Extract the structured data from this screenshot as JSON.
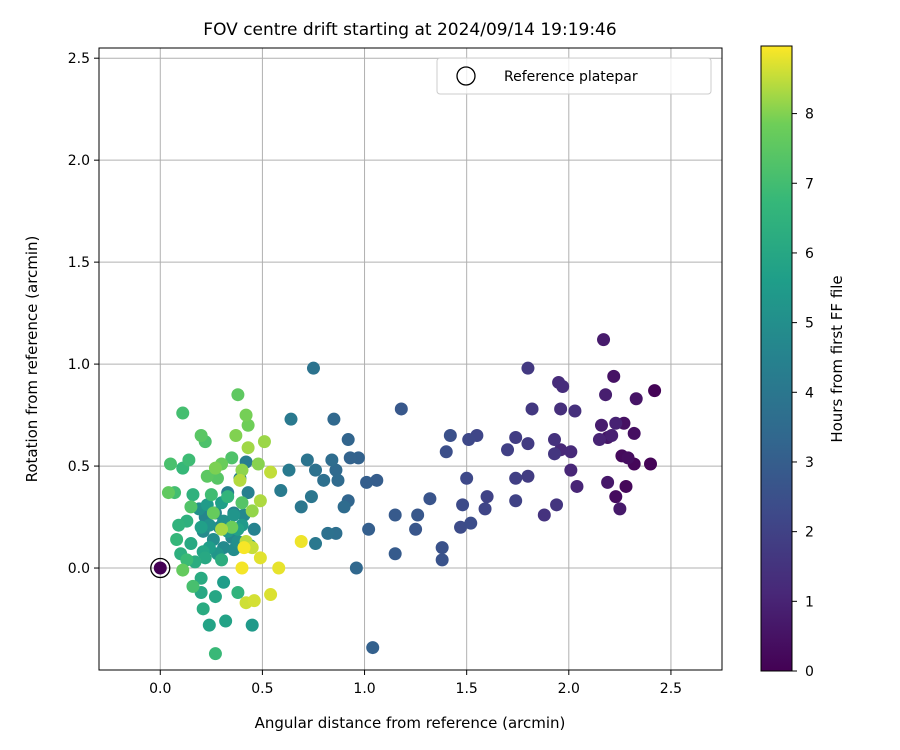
{
  "chart_data": {
    "type": "scatter",
    "title": "FOV centre drift starting at 2024/09/14 19:19:46",
    "xlabel": "Angular distance from reference (arcmin)",
    "ylabel": "Rotation from reference (arcmin)",
    "xlim": [
      -0.3,
      2.75
    ],
    "ylim": [
      -0.5,
      2.55
    ],
    "xticks": [
      0.0,
      0.5,
      1.0,
      1.5,
      2.0,
      2.5
    ],
    "xtick_labels": [
      "0.0",
      "0.5",
      "1.0",
      "1.5",
      "2.0",
      "2.5"
    ],
    "yticks": [
      0.0,
      0.5,
      1.0,
      1.5,
      2.0,
      2.5
    ],
    "ytick_labels": [
      "0.0",
      "0.5",
      "1.0",
      "1.5",
      "2.0",
      "2.5"
    ],
    "grid": true,
    "legend": {
      "placement": "top-right",
      "entries": [
        "Reference platepar"
      ]
    },
    "colorbar": {
      "label": "Hours from first FF file",
      "range": [
        0,
        8.97
      ],
      "ticks": [
        0,
        1,
        2,
        3,
        4,
        5,
        6,
        7,
        8
      ],
      "tick_labels": [
        "0",
        "1",
        "2",
        "3",
        "4",
        "5",
        "6",
        "7",
        "8"
      ],
      "colormap": "viridis"
    },
    "reference_point": {
      "x": 0.0,
      "y": 0.0,
      "hours": 0.0
    },
    "series": [
      {
        "points": [
          {
            "x": 2.42,
            "y": 0.87,
            "h": 0.05
          },
          {
            "x": 2.4,
            "y": 0.51,
            "h": 0.1
          },
          {
            "x": 2.32,
            "y": 0.51,
            "h": 0.15
          },
          {
            "x": 2.28,
            "y": 0.4,
            "h": 0.2
          },
          {
            "x": 2.26,
            "y": 0.55,
            "h": 0.25
          },
          {
            "x": 2.23,
            "y": 0.35,
            "h": 0.3
          },
          {
            "x": 2.29,
            "y": 0.54,
            "h": 0.35
          },
          {
            "x": 2.32,
            "y": 0.66,
            "h": 0.4
          },
          {
            "x": 2.27,
            "y": 0.71,
            "h": 0.45
          },
          {
            "x": 2.22,
            "y": 0.94,
            "h": 0.5
          },
          {
            "x": 2.33,
            "y": 0.83,
            "h": 0.55
          },
          {
            "x": 2.19,
            "y": 0.64,
            "h": 0.6
          },
          {
            "x": 2.19,
            "y": 0.42,
            "h": 0.65
          },
          {
            "x": 2.25,
            "y": 0.29,
            "h": 0.7
          },
          {
            "x": 2.17,
            "y": 1.12,
            "h": 0.75
          },
          {
            "x": 2.16,
            "y": 0.7,
            "h": 0.8
          },
          {
            "x": 2.18,
            "y": 0.85,
            "h": 0.85
          },
          {
            "x": 2.21,
            "y": 0.65,
            "h": 0.9
          },
          {
            "x": 2.23,
            "y": 0.71,
            "h": 0.95
          },
          {
            "x": 2.15,
            "y": 0.63,
            "h": 1.0
          },
          {
            "x": 2.04,
            "y": 0.4,
            "h": 1.05
          },
          {
            "x": 2.01,
            "y": 0.48,
            "h": 1.1
          },
          {
            "x": 1.96,
            "y": 0.58,
            "h": 1.15
          },
          {
            "x": 2.01,
            "y": 0.57,
            "h": 1.2
          },
          {
            "x": 1.95,
            "y": 0.91,
            "h": 1.25
          },
          {
            "x": 1.97,
            "y": 0.89,
            "h": 1.3
          },
          {
            "x": 1.96,
            "y": 0.78,
            "h": 1.35
          },
          {
            "x": 2.03,
            "y": 0.77,
            "h": 1.4
          },
          {
            "x": 1.93,
            "y": 0.63,
            "h": 1.45
          },
          {
            "x": 1.88,
            "y": 0.26,
            "h": 1.5
          },
          {
            "x": 1.94,
            "y": 0.31,
            "h": 1.55
          },
          {
            "x": 1.93,
            "y": 0.56,
            "h": 1.6
          },
          {
            "x": 1.82,
            "y": 0.78,
            "h": 1.65
          },
          {
            "x": 1.8,
            "y": 0.98,
            "h": 1.7
          },
          {
            "x": 1.8,
            "y": 0.61,
            "h": 1.75
          },
          {
            "x": 1.8,
            "y": 0.45,
            "h": 1.8
          },
          {
            "x": 1.74,
            "y": 0.64,
            "h": 1.85
          },
          {
            "x": 1.74,
            "y": 0.44,
            "h": 1.9
          },
          {
            "x": 1.7,
            "y": 0.58,
            "h": 1.95
          },
          {
            "x": 1.74,
            "y": 0.33,
            "h": 2.0
          },
          {
            "x": 1.6,
            "y": 0.35,
            "h": 2.05
          },
          {
            "x": 1.59,
            "y": 0.29,
            "h": 2.1
          },
          {
            "x": 1.55,
            "y": 0.65,
            "h": 2.15
          },
          {
            "x": 1.51,
            "y": 0.63,
            "h": 2.2
          },
          {
            "x": 1.5,
            "y": 0.44,
            "h": 2.25
          },
          {
            "x": 1.48,
            "y": 0.31,
            "h": 2.3
          },
          {
            "x": 1.47,
            "y": 0.2,
            "h": 2.35
          },
          {
            "x": 1.52,
            "y": 0.22,
            "h": 2.4
          },
          {
            "x": 1.4,
            "y": 0.57,
            "h": 2.45
          },
          {
            "x": 1.42,
            "y": 0.65,
            "h": 2.5
          },
          {
            "x": 1.38,
            "y": 0.1,
            "h": 2.55
          },
          {
            "x": 1.38,
            "y": 0.04,
            "h": 2.6
          },
          {
            "x": 1.32,
            "y": 0.34,
            "h": 2.65
          },
          {
            "x": 1.25,
            "y": 0.19,
            "h": 2.7
          },
          {
            "x": 1.26,
            "y": 0.26,
            "h": 2.75
          },
          {
            "x": 1.18,
            "y": 0.78,
            "h": 2.8
          },
          {
            "x": 1.15,
            "y": 0.26,
            "h": 2.85
          },
          {
            "x": 1.15,
            "y": 0.07,
            "h": 2.9
          },
          {
            "x": 1.06,
            "y": 0.43,
            "h": 2.95
          },
          {
            "x": 1.01,
            "y": 0.42,
            "h": 3.0
          },
          {
            "x": 1.02,
            "y": 0.19,
            "h": 3.05
          },
          {
            "x": 1.04,
            "y": -0.39,
            "h": 3.1
          },
          {
            "x": 0.97,
            "y": 0.54,
            "h": 3.15
          },
          {
            "x": 0.93,
            "y": 0.54,
            "h": 3.2
          },
          {
            "x": 0.92,
            "y": 0.63,
            "h": 3.25
          },
          {
            "x": 0.92,
            "y": 0.33,
            "h": 3.3
          },
          {
            "x": 0.96,
            "y": 0.0,
            "h": 3.35
          },
          {
            "x": 0.85,
            "y": 0.73,
            "h": 3.4
          },
          {
            "x": 0.86,
            "y": 0.48,
            "h": 3.45
          },
          {
            "x": 0.87,
            "y": 0.43,
            "h": 3.5
          },
          {
            "x": 0.9,
            "y": 0.3,
            "h": 3.55
          },
          {
            "x": 0.84,
            "y": 0.53,
            "h": 3.6
          },
          {
            "x": 0.86,
            "y": 0.17,
            "h": 3.65
          },
          {
            "x": 0.8,
            "y": 0.43,
            "h": 3.7
          },
          {
            "x": 0.82,
            "y": 0.17,
            "h": 3.75
          },
          {
            "x": 0.76,
            "y": 0.48,
            "h": 3.8
          },
          {
            "x": 0.75,
            "y": 0.98,
            "h": 3.85
          },
          {
            "x": 0.72,
            "y": 0.53,
            "h": 3.9
          },
          {
            "x": 0.74,
            "y": 0.35,
            "h": 3.95
          },
          {
            "x": 0.69,
            "y": 0.3,
            "h": 4.0
          },
          {
            "x": 0.76,
            "y": 0.12,
            "h": 4.05
          },
          {
            "x": 0.64,
            "y": 0.73,
            "h": 4.1
          },
          {
            "x": 0.63,
            "y": 0.48,
            "h": 4.15
          },
          {
            "x": 0.59,
            "y": 0.38,
            "h": 4.2
          },
          {
            "x": 0.42,
            "y": 0.52,
            "h": 4.25
          },
          {
            "x": 0.39,
            "y": 0.44,
            "h": 4.3
          },
          {
            "x": 0.43,
            "y": 0.37,
            "h": 4.35
          },
          {
            "x": 0.33,
            "y": 0.37,
            "h": 4.4
          },
          {
            "x": 0.36,
            "y": 0.27,
            "h": 4.45
          },
          {
            "x": 0.46,
            "y": 0.19,
            "h": 4.5
          },
          {
            "x": 0.29,
            "y": 0.2,
            "h": 4.55
          },
          {
            "x": 0.27,
            "y": 0.27,
            "h": 4.6
          },
          {
            "x": 0.22,
            "y": 0.25,
            "h": 4.65
          },
          {
            "x": 0.35,
            "y": 0.15,
            "h": 4.7
          },
          {
            "x": 0.41,
            "y": 0.26,
            "h": 4.75
          },
          {
            "x": 0.31,
            "y": 0.1,
            "h": 4.8
          },
          {
            "x": 0.21,
            "y": 0.18,
            "h": 4.85
          },
          {
            "x": 0.36,
            "y": 0.09,
            "h": 4.9
          },
          {
            "x": 0.26,
            "y": 0.14,
            "h": 4.95
          },
          {
            "x": 0.38,
            "y": 0.13,
            "h": 5.0
          },
          {
            "x": 0.19,
            "y": 0.29,
            "h": 5.05
          },
          {
            "x": 0.31,
            "y": 0.23,
            "h": 5.1
          },
          {
            "x": 0.24,
            "y": 0.21,
            "h": 5.15
          },
          {
            "x": 0.44,
            "y": 0.11,
            "h": 5.2
          },
          {
            "x": 0.36,
            "y": 0.26,
            "h": 5.25
          },
          {
            "x": 0.28,
            "y": 0.07,
            "h": 5.3
          },
          {
            "x": 0.33,
            "y": 0.18,
            "h": 5.35
          },
          {
            "x": 0.4,
            "y": 0.21,
            "h": 5.4
          },
          {
            "x": 0.45,
            "y": -0.28,
            "h": 5.45
          },
          {
            "x": 0.23,
            "y": 0.31,
            "h": 5.5
          },
          {
            "x": 0.31,
            "y": -0.07,
            "h": 5.55
          },
          {
            "x": 0.24,
            "y": 0.1,
            "h": 5.6
          },
          {
            "x": 0.3,
            "y": 0.32,
            "h": 5.65
          },
          {
            "x": 0.2,
            "y": 0.2,
            "h": 5.7
          },
          {
            "x": 0.38,
            "y": 0.19,
            "h": 5.75
          },
          {
            "x": 0.32,
            "y": -0.26,
            "h": 5.8
          },
          {
            "x": 0.24,
            "y": -0.28,
            "h": 5.85
          },
          {
            "x": 0.21,
            "y": 0.08,
            "h": 5.9
          },
          {
            "x": 0.27,
            "y": -0.14,
            "h": 5.95
          },
          {
            "x": 0.2,
            "y": -0.12,
            "h": 6.0
          },
          {
            "x": 0.22,
            "y": 0.05,
            "h": 6.05
          },
          {
            "x": 0.15,
            "y": 0.12,
            "h": 6.1
          },
          {
            "x": 0.2,
            "y": -0.05,
            "h": 6.15
          },
          {
            "x": 0.21,
            "y": -0.2,
            "h": 6.2
          },
          {
            "x": 0.17,
            "y": 0.03,
            "h": 6.25
          },
          {
            "x": 0.3,
            "y": 0.04,
            "h": 6.3
          },
          {
            "x": 0.1,
            "y": 0.07,
            "h": 6.35
          },
          {
            "x": 0.13,
            "y": 0.23,
            "h": 6.4
          },
          {
            "x": 0.16,
            "y": 0.36,
            "h": 6.45
          },
          {
            "x": 0.09,
            "y": 0.21,
            "h": 6.5
          },
          {
            "x": 0.38,
            "y": -0.12,
            "h": 6.55
          },
          {
            "x": 0.33,
            "y": 0.35,
            "h": 6.6
          },
          {
            "x": 0.08,
            "y": 0.14,
            "h": 6.7
          },
          {
            "x": 0.11,
            "y": 0.49,
            "h": 6.75
          },
          {
            "x": 0.27,
            "y": -0.42,
            "h": 6.8
          },
          {
            "x": 0.13,
            "y": 0.04,
            "h": 6.85
          },
          {
            "x": 0.14,
            "y": 0.53,
            "h": 6.9
          },
          {
            "x": 0.25,
            "y": 0.36,
            "h": 6.95
          },
          {
            "x": 0.07,
            "y": 0.37,
            "h": 7.0
          },
          {
            "x": 0.11,
            "y": 0.76,
            "h": 7.05
          },
          {
            "x": 0.16,
            "y": -0.09,
            "h": 7.1
          },
          {
            "x": 0.05,
            "y": 0.51,
            "h": 7.15
          },
          {
            "x": 0.22,
            "y": 0.62,
            "h": 7.2
          },
          {
            "x": 0.35,
            "y": 0.54,
            "h": 7.25
          },
          {
            "x": 0.15,
            "y": 0.3,
            "h": 7.3
          },
          {
            "x": 0.4,
            "y": 0.32,
            "h": 7.35
          },
          {
            "x": 0.28,
            "y": 0.44,
            "h": 7.4
          },
          {
            "x": 0.2,
            "y": 0.65,
            "h": 7.45
          },
          {
            "x": 0.23,
            "y": 0.45,
            "h": 7.5
          },
          {
            "x": 0.38,
            "y": 0.85,
            "h": 7.55
          },
          {
            "x": 0.04,
            "y": 0.37,
            "h": 7.6
          },
          {
            "x": 0.11,
            "y": -0.01,
            "h": 7.65
          },
          {
            "x": 0.26,
            "y": 0.27,
            "h": 7.7
          },
          {
            "x": 0.3,
            "y": 0.51,
            "h": 7.75
          },
          {
            "x": 0.35,
            "y": 0.2,
            "h": 7.8
          },
          {
            "x": 0.43,
            "y": 0.7,
            "h": 7.85
          },
          {
            "x": 0.42,
            "y": 0.75,
            "h": 7.9
          },
          {
            "x": 0.27,
            "y": 0.49,
            "h": 7.95
          },
          {
            "x": 0.37,
            "y": 0.65,
            "h": 8.0
          },
          {
            "x": 0.48,
            "y": 0.51,
            "h": 8.05
          },
          {
            "x": 0.4,
            "y": 0.48,
            "h": 8.1
          },
          {
            "x": 0.45,
            "y": 0.28,
            "h": 8.15
          },
          {
            "x": 0.51,
            "y": 0.62,
            "h": 8.2
          },
          {
            "x": 0.43,
            "y": 0.59,
            "h": 8.25
          },
          {
            "x": 0.3,
            "y": 0.19,
            "h": 8.3
          },
          {
            "x": 0.49,
            "y": 0.33,
            "h": 8.35
          },
          {
            "x": 0.39,
            "y": 0.43,
            "h": 8.4
          },
          {
            "x": 0.42,
            "y": 0.13,
            "h": 8.45
          },
          {
            "x": 0.54,
            "y": 0.47,
            "h": 8.5
          },
          {
            "x": 0.45,
            "y": 0.1,
            "h": 8.55
          },
          {
            "x": 0.42,
            "y": -0.17,
            "h": 8.6
          },
          {
            "x": 0.46,
            "y": -0.16,
            "h": 8.65
          },
          {
            "x": 0.54,
            "y": -0.13,
            "h": 8.7
          },
          {
            "x": 0.49,
            "y": 0.05,
            "h": 8.75
          },
          {
            "x": 0.58,
            "y": 0.0,
            "h": 8.8
          },
          {
            "x": 0.69,
            "y": 0.13,
            "h": 8.85
          },
          {
            "x": 0.4,
            "y": 0.0,
            "h": 8.9
          },
          {
            "x": 0.41,
            "y": 0.1,
            "h": 8.92
          }
        ]
      }
    ]
  }
}
